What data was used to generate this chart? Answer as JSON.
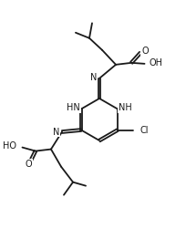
{
  "bg_color": "#ffffff",
  "line_color": "#1a1a1a",
  "line_width": 1.3,
  "font_size": 7.0,
  "figsize": [
    2.05,
    2.62
  ],
  "dpi": 100,
  "xlim": [
    0,
    10
  ],
  "ylim": [
    0,
    13
  ]
}
